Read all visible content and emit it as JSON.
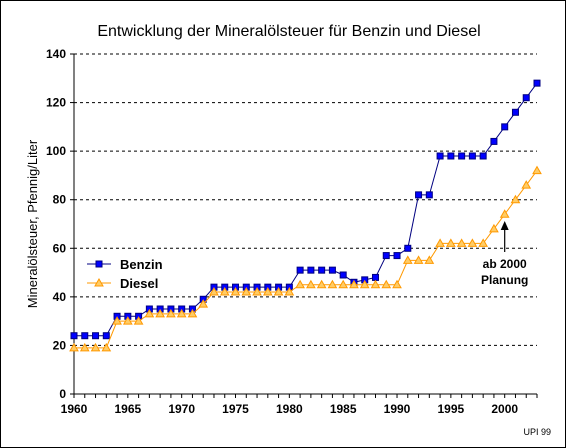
{
  "chart_data": {
    "type": "line",
    "title": "Entwicklung der Mineralölsteuer für Benzin und Diesel",
    "xlabel": "",
    "ylabel": "Mineralölsteuer, Pfennig/Liter",
    "xlim": [
      1960,
      2003
    ],
    "ylim": [
      0,
      140
    ],
    "x_ticks": [
      1960,
      1965,
      1970,
      1975,
      1980,
      1985,
      1990,
      1995,
      2000
    ],
    "y_ticks": [
      0,
      20,
      40,
      60,
      80,
      100,
      120,
      140
    ],
    "grid": "horizontal dashed",
    "legend_position": "left-middle",
    "x": [
      1960,
      1961,
      1962,
      1963,
      1964,
      1965,
      1966,
      1967,
      1968,
      1969,
      1970,
      1971,
      1972,
      1973,
      1974,
      1975,
      1976,
      1977,
      1978,
      1979,
      1980,
      1981,
      1982,
      1983,
      1984,
      1985,
      1986,
      1987,
      1988,
      1989,
      1990,
      1991,
      1992,
      1993,
      1994,
      1995,
      1996,
      1997,
      1998,
      1999,
      2000,
      2001,
      2002,
      2003
    ],
    "series": [
      {
        "name": "Benzin",
        "color": "#000080",
        "marker": "square",
        "marker_color": "#0000ff",
        "values": [
          24,
          24,
          24,
          24,
          32,
          32,
          32,
          35,
          35,
          35,
          35,
          35,
          39,
          44,
          44,
          44,
          44,
          44,
          44,
          44,
          44,
          51,
          51,
          51,
          51,
          49,
          46,
          47,
          48,
          57,
          57,
          60,
          82,
          82,
          98,
          98,
          98,
          98,
          98,
          104,
          110,
          116,
          122,
          128
        ]
      },
      {
        "name": "Diesel",
        "color": "#ff9900",
        "marker": "triangle",
        "marker_color": "#ffcc66",
        "values": [
          19,
          19,
          19,
          19,
          30,
          30,
          30,
          33,
          33,
          33,
          33,
          33,
          37,
          42,
          42,
          42,
          42,
          42,
          42,
          42,
          42,
          45,
          45,
          45,
          45,
          45,
          45,
          45,
          45,
          45,
          45,
          55,
          55,
          55,
          62,
          62,
          62,
          62,
          62,
          68,
          74,
          80,
          86,
          92
        ]
      }
    ],
    "annotation": {
      "line1": "ab 2000",
      "line2": "Planung",
      "points_to_x": 2000
    }
  },
  "credit": "UPI 99"
}
